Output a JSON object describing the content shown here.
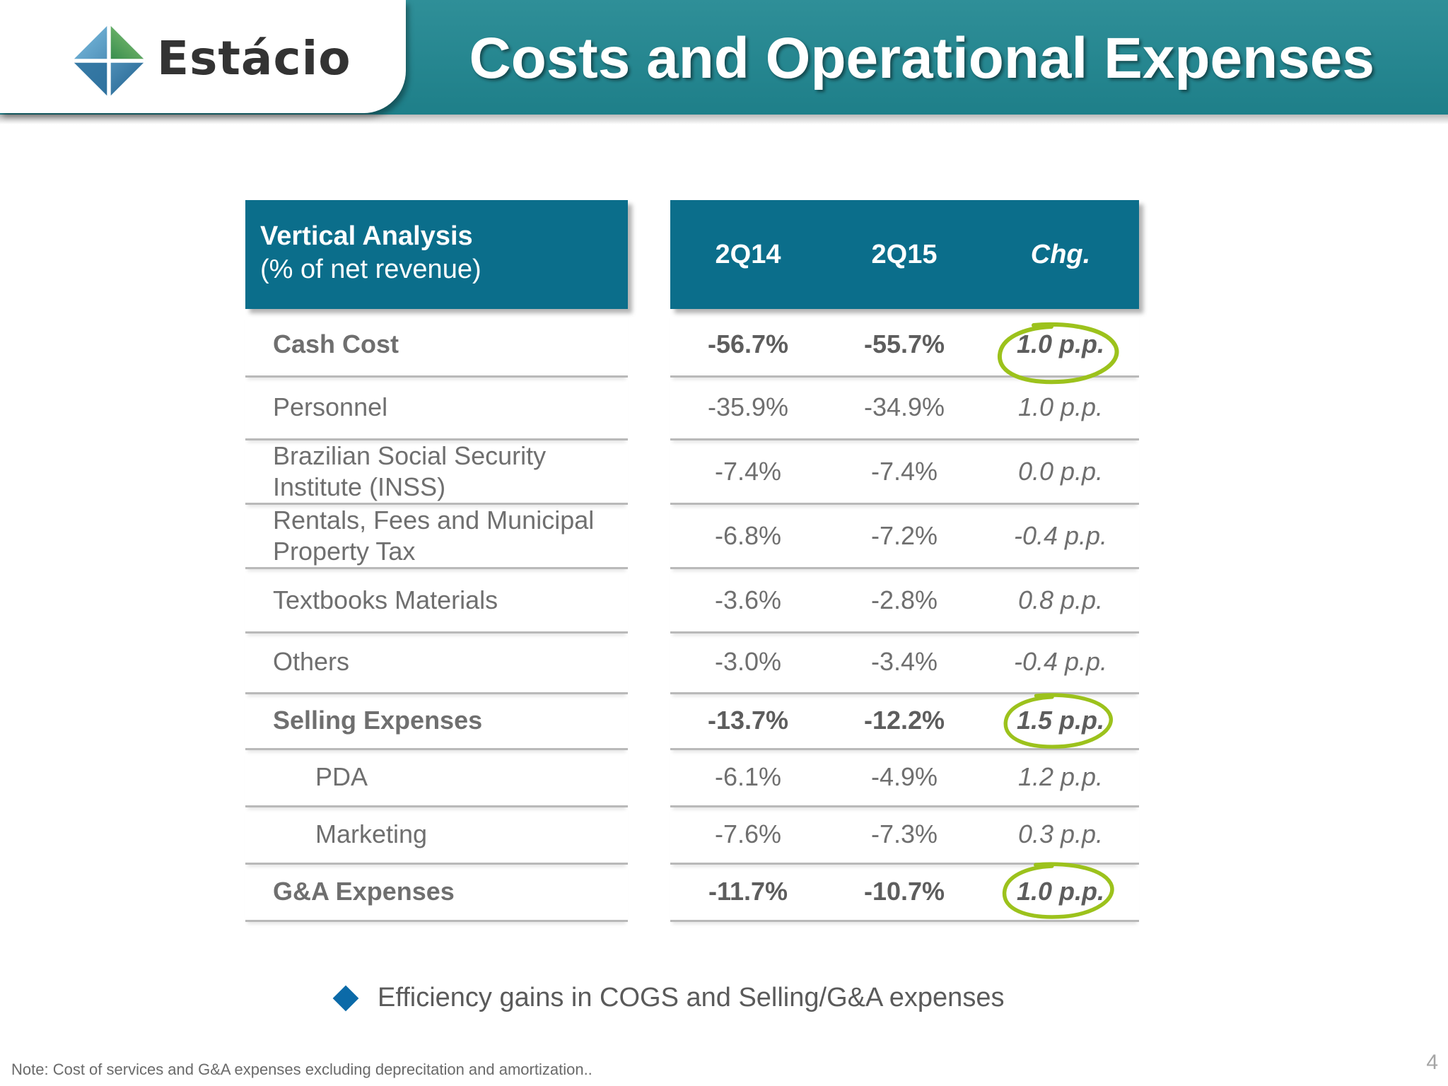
{
  "header": {
    "logo_text": "Estácio",
    "title": "Costs and Operational Expenses"
  },
  "table": {
    "header_label_bold": "Vertical Analysis",
    "header_label_sub": "(% of net revenue)",
    "columns": [
      "2Q14",
      "2Q15",
      "Chg."
    ],
    "rows": [
      {
        "label": "Cash Cost",
        "v2q14": "-56.7%",
        "v2q15": "-55.7%",
        "chg": "1.0 p.p."
      },
      {
        "label": "Personnel",
        "v2q14": "-35.9%",
        "v2q15": "-34.9%",
        "chg": "1.0 p.p."
      },
      {
        "label": "Brazilian Social Security Institute (INSS)",
        "v2q14": "-7.4%",
        "v2q15": "-7.4%",
        "chg": "0.0 p.p."
      },
      {
        "label": "Rentals, Fees and Municipal Property Tax",
        "v2q14": "-6.8%",
        "v2q15": "-7.2%",
        "chg": "-0.4 p.p."
      },
      {
        "label": "Textbooks Materials",
        "v2q14": "-3.6%",
        "v2q15": "-2.8%",
        "chg": "0.8 p.p."
      },
      {
        "label": "Others",
        "v2q14": "-3.0%",
        "v2q15": "-3.4%",
        "chg": "-0.4 p.p."
      },
      {
        "label": "Selling Expenses",
        "v2q14": "-13.7%",
        "v2q15": "-12.2%",
        "chg": "1.5 p.p."
      },
      {
        "label": "PDA",
        "v2q14": "-6.1%",
        "v2q15": "-4.9%",
        "chg": "1.2 p.p."
      },
      {
        "label": "Marketing",
        "v2q14": "-7.6%",
        "v2q15": "-7.3%",
        "chg": "0.3 p.p."
      },
      {
        "label": "G&A Expenses",
        "v2q14": "-11.7%",
        "v2q15": "-10.7%",
        "chg": "1.0 p.p."
      }
    ]
  },
  "bullet": "Efficiency gains in COGS and Selling/G&A expenses",
  "footnote": "Note: Cost of services and G&A expenses excluding deprecitation and amortization..",
  "page_number": "4",
  "colors": {
    "header_band": "#1e7f89",
    "table_header": "#0b6e8b",
    "highlight_circle": "#9cc21c",
    "bullet": "#0b6aa8"
  }
}
